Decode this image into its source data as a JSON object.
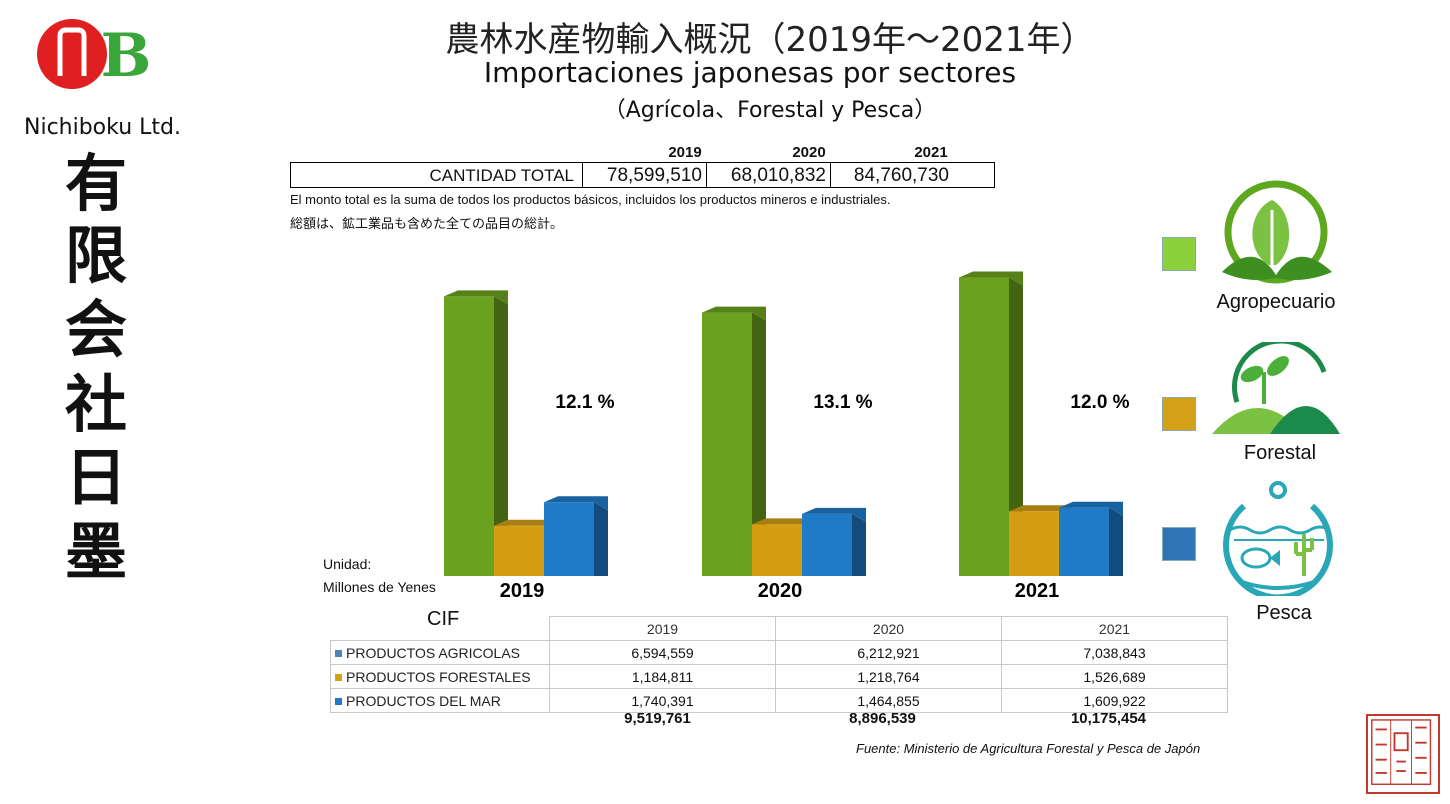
{
  "brand": {
    "name": "Nichiboku Ltd.",
    "vertical_chars": [
      "有",
      "限",
      "会",
      "社",
      "日",
      "墨"
    ],
    "logo_colors": {
      "red": "#e02020",
      "green": "#3aa63a"
    }
  },
  "header": {
    "title_jp": "農林水産物輸入概況（2019年～2021年）",
    "title_es": "Importaciones japonesas por sectores",
    "subtitle": "（Agrícola、Forestal y Pesca）"
  },
  "totals": {
    "label": "CANTIDAD TOTAL",
    "years": [
      "2019",
      "2020",
      "2021"
    ],
    "values": [
      "78,599,510",
      "68,010,832",
      "84,760,730"
    ],
    "note_es": "El monto total es la suma de todos los productos básicos, incluidos los productos mineros e  industriales.",
    "note_jp": "総額は、鉱工業品も含めた全ての品目の総計。"
  },
  "unit": {
    "line1": "Unidad:",
    "line2": "Millones de Yenes"
  },
  "chart_data": {
    "type": "bar",
    "categories": [
      "2019",
      "2020",
      "2021"
    ],
    "series": [
      {
        "name": "Agropecuario",
        "color": "#6aa11e",
        "values": [
          6594559,
          6212921,
          7038843
        ]
      },
      {
        "name": "Forestal",
        "color": "#d39d14",
        "values": [
          1184811,
          1218764,
          1526689
        ]
      },
      {
        "name": "Pesca",
        "color": "#1f7bc8",
        "values": [
          1740391,
          1464855,
          1609922
        ]
      }
    ],
    "percent_labels": [
      "12.1 %",
      "13.1 %",
      "12.0 %"
    ],
    "ylim": [
      0,
      7500000
    ]
  },
  "legend": [
    {
      "label": "Agropecuario",
      "color": "#8cd03c",
      "icon": "cabbage-leaf-icon"
    },
    {
      "label": "Forestal",
      "color": "#d4a017",
      "icon": "seedling-hill-icon"
    },
    {
      "label": "Pesca",
      "color": "#2f74b5",
      "icon": "fishbowl-icon"
    }
  ],
  "cif": {
    "label": "CIF",
    "years": [
      "2019",
      "2020",
      "2021"
    ],
    "rows": [
      {
        "label": "PRODUCTOS  AGRICOLAS",
        "marker": "#4f81bd",
        "values": [
          "6,594,559",
          "6,212,921",
          "7,038,843"
        ]
      },
      {
        "label": "PRODUCTOS  FORESTALES",
        "marker": "#d4a017",
        "values": [
          "1,184,811",
          "1,218,764",
          "1,526,689"
        ]
      },
      {
        "label": "PRODUCTOS DEL MAR",
        "marker": "#1f7bc8",
        "values": [
          "1,740,391",
          "1,464,855",
          "1,609,922"
        ]
      }
    ],
    "sums": [
      "9,519,761",
      "8,896,539",
      "10,175,454"
    ]
  },
  "source": "Fuente: Ministerio de Agricultura Forestal y Pesca de Japón",
  "seal_text": [
    "有限会社",
    "日墨",
    "貿易商社"
  ]
}
